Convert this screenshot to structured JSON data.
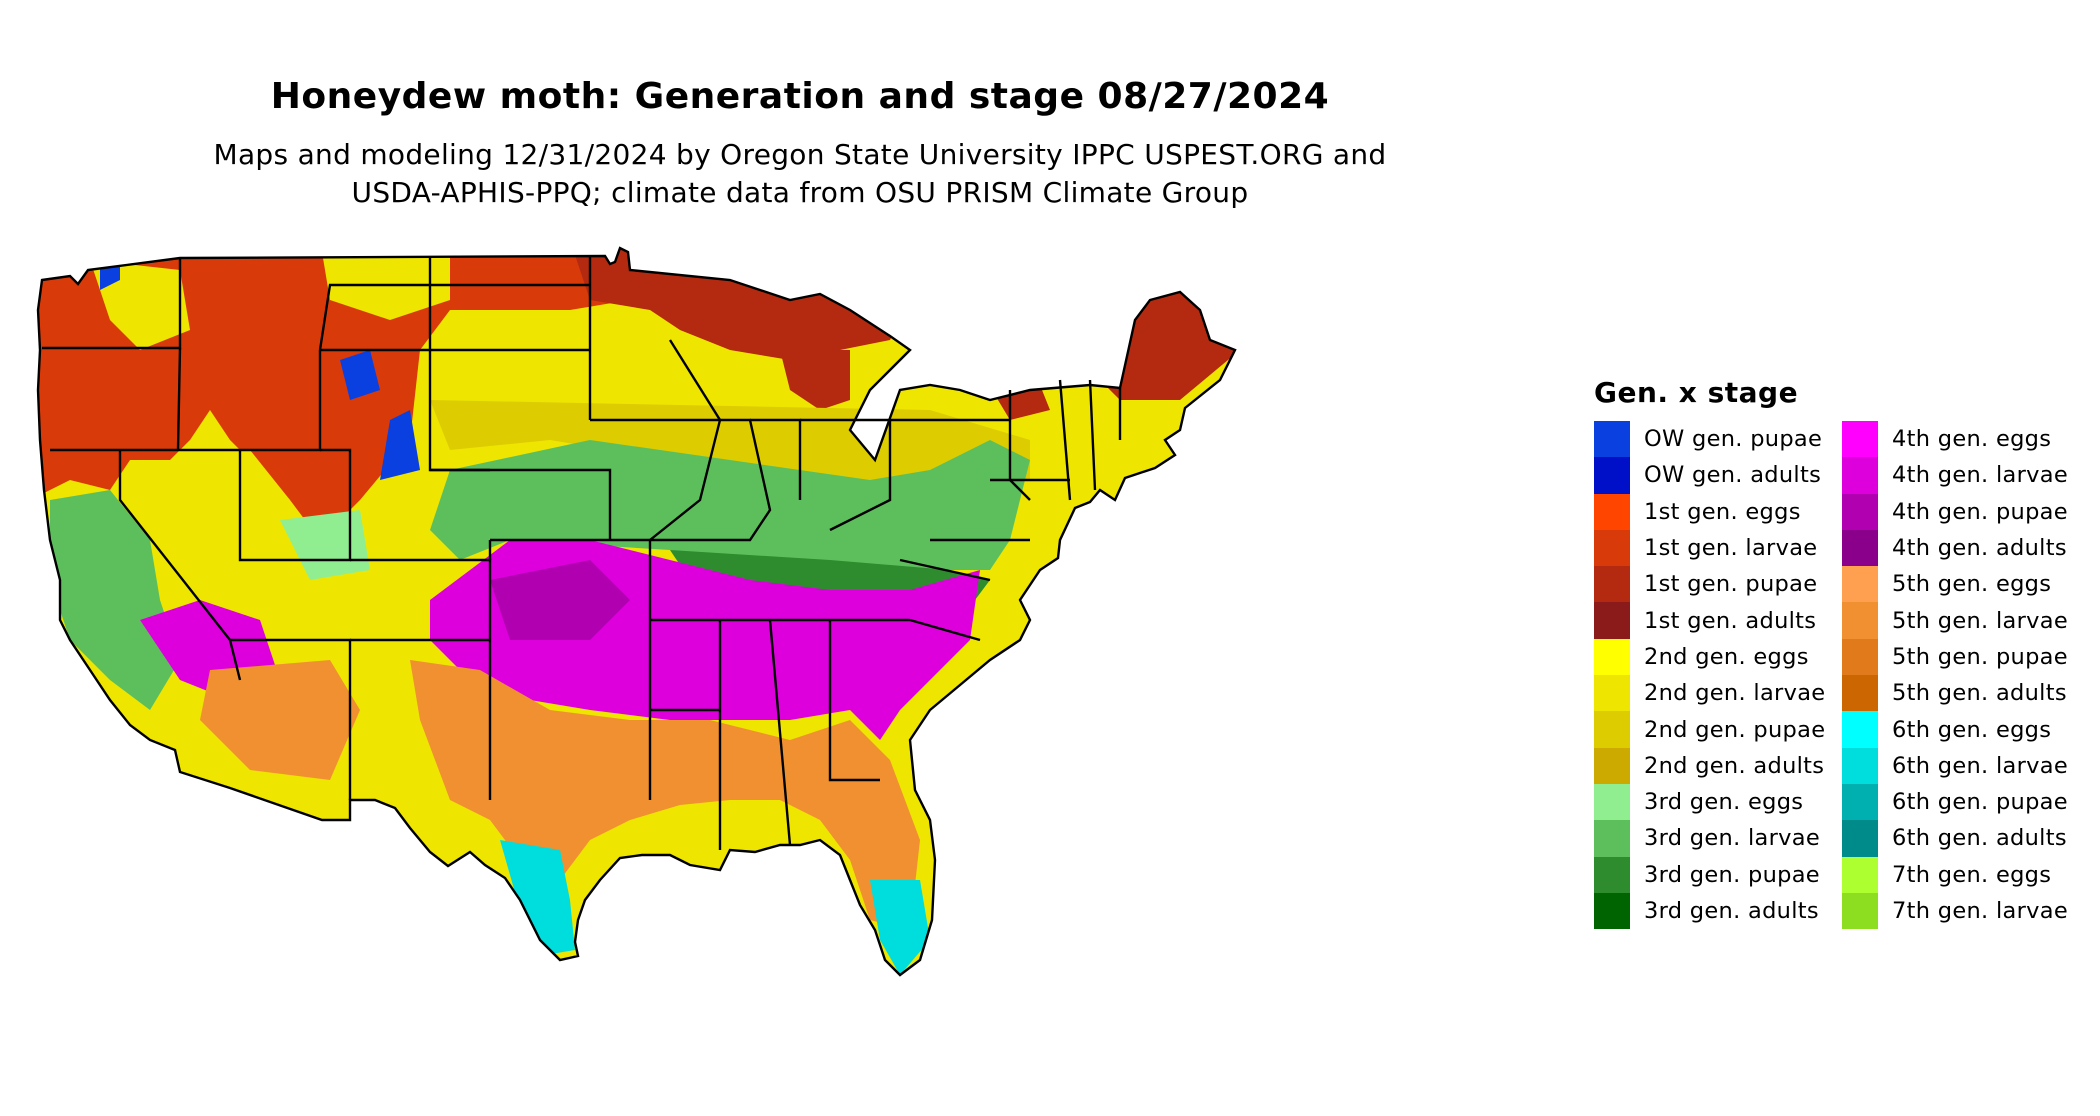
{
  "title": "Honeydew moth: Generation and stage 08/27/2024",
  "subtitle_line1": "Maps and modeling 12/31/2024 by Oregon State University IPPC USPEST.ORG and",
  "subtitle_line2": "USDA-APHIS-PPQ; climate data from OSU PRISM Climate Group",
  "legend": {
    "title": "Gen. x stage",
    "col1": [
      {
        "label": "OW gen. pupae",
        "color": "#0a3fe0"
      },
      {
        "label": "OW gen. adults",
        "color": "#0010c8"
      },
      {
        "label": "1st gen. eggs",
        "color": "#ff4500"
      },
      {
        "label": "1st gen. larvae",
        "color": "#d93a0a"
      },
      {
        "label": "1st gen. pupae",
        "color": "#b32a10"
      },
      {
        "label": "1st gen. adults",
        "color": "#8b1a1a"
      },
      {
        "label": "2nd gen. eggs",
        "color": "#ffff00"
      },
      {
        "label": "2nd gen. larvae",
        "color": "#eee600"
      },
      {
        "label": "2nd gen. pupae",
        "color": "#ddcc00"
      },
      {
        "label": "2nd gen. adults",
        "color": "#ccaa00"
      },
      {
        "label": "3rd gen. eggs",
        "color": "#90ee90"
      },
      {
        "label": "3rd gen. larvae",
        "color": "#5cbf5c"
      },
      {
        "label": "3rd gen. pupae",
        "color": "#2e8b2e"
      },
      {
        "label": "3rd gen. adults",
        "color": "#006400"
      }
    ],
    "col2": [
      {
        "label": "4th gen. eggs",
        "color": "#ff00ff"
      },
      {
        "label": "4th gen. larvae",
        "color": "#dd00dd"
      },
      {
        "label": "4th gen. pupae",
        "color": "#b000b0"
      },
      {
        "label": "4th gen. adults",
        "color": "#8b008b"
      },
      {
        "label": "5th gen. eggs",
        "color": "#ffa050"
      },
      {
        "label": "5th gen. larvae",
        "color": "#f09030"
      },
      {
        "label": "5th gen. pupae",
        "color": "#e07a1a"
      },
      {
        "label": "5th gen. adults",
        "color": "#cc6600"
      },
      {
        "label": "6th gen. eggs",
        "color": "#00ffff"
      },
      {
        "label": "6th gen. larvae",
        "color": "#00dddd"
      },
      {
        "label": "6th gen. pupae",
        "color": "#00b0b0"
      },
      {
        "label": "6th gen. adults",
        "color": "#008b8b"
      },
      {
        "label": "7th gen. eggs",
        "color": "#adff2f"
      },
      {
        "label": "7th gen. larvae",
        "color": "#8ddd20"
      }
    ]
  }
}
